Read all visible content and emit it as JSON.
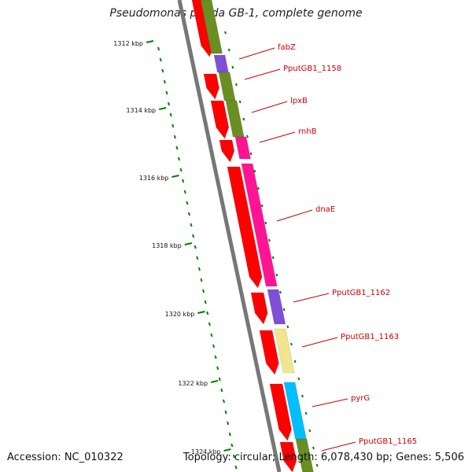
{
  "title": "Pseudomonas putida GB-1, complete genome",
  "footer": {
    "accession": "Accession: NC_010322",
    "topology": "Topology: circular; Length: 6,078,430 bp; Genes: 5,506"
  },
  "kbp_labels": [
    "1312 kbp",
    "1314 kbp",
    "1316 kbp",
    "1318 kbp",
    "1320 kbp",
    "1322 kbp",
    "1324 kbp"
  ],
  "gene_labels": [
    "fabZ",
    "PputGB1_1158",
    "lpxB",
    "rnhB",
    "dnaE",
    "PputGB1_1162",
    "PputGB1_1163",
    "pyrG",
    "PputGB1_1165"
  ],
  "colors": {
    "backbone": "#777777",
    "cds_red": "#ff0000",
    "olive": "#6b8e23",
    "purple": "#7f4fd8",
    "magenta": "#ff1493",
    "yellow": "#f0e68c",
    "cyan": "#00bfff",
    "tick_green": "#008000",
    "label_red": "#cc0000"
  }
}
